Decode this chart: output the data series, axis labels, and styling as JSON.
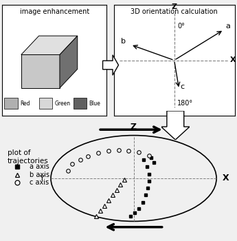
{
  "bg_color": "#f0f0f0",
  "white": "#ffffff",
  "black": "#000000",
  "gray_light": "#c8c8c8",
  "gray_mid": "#a0a0a0",
  "gray_dark": "#606060",
  "top_left_title": "image enhancement",
  "top_right_title": "3D orientation calculation",
  "legend_title": "plot of\ntrajectories",
  "legend_items": [
    "a axis",
    "b axis",
    "c axis"
  ],
  "color_legend": [
    {
      "label": "Red",
      "color": "#b0b0b0"
    },
    {
      "label": "Green",
      "color": "#d8d8d8"
    },
    {
      "label": "Blue",
      "color": "#606060"
    }
  ],
  "a_axis_points": [
    [
      0.08,
      0.38
    ],
    [
      0.1,
      0.28
    ],
    [
      0.12,
      0.18
    ],
    [
      0.13,
      0.08
    ],
    [
      0.14,
      -0.02
    ],
    [
      0.14,
      -0.12
    ],
    [
      0.13,
      -0.22
    ],
    [
      0.11,
      -0.32
    ],
    [
      0.09,
      -0.42
    ],
    [
      0.07,
      -0.52
    ],
    [
      0.06,
      -0.62
    ],
    [
      0.1,
      0.38
    ],
    [
      0.13,
      0.28
    ]
  ],
  "b_axis_points": [
    [
      -0.42,
      -0.52
    ],
    [
      -0.4,
      -0.44
    ],
    [
      -0.38,
      -0.36
    ],
    [
      -0.36,
      -0.3
    ],
    [
      -0.34,
      -0.22
    ],
    [
      -0.32,
      -0.14
    ],
    [
      -0.3,
      -0.06
    ],
    [
      -0.28,
      0.02
    ]
  ],
  "c_axis_points": [
    [
      -0.55,
      0.18
    ],
    [
      -0.5,
      0.24
    ],
    [
      -0.44,
      0.3
    ],
    [
      -0.38,
      0.34
    ],
    [
      -0.3,
      0.38
    ],
    [
      -0.22,
      0.4
    ],
    [
      -0.14,
      0.41
    ],
    [
      -0.06,
      0.4
    ],
    [
      0.02,
      0.37
    ]
  ]
}
